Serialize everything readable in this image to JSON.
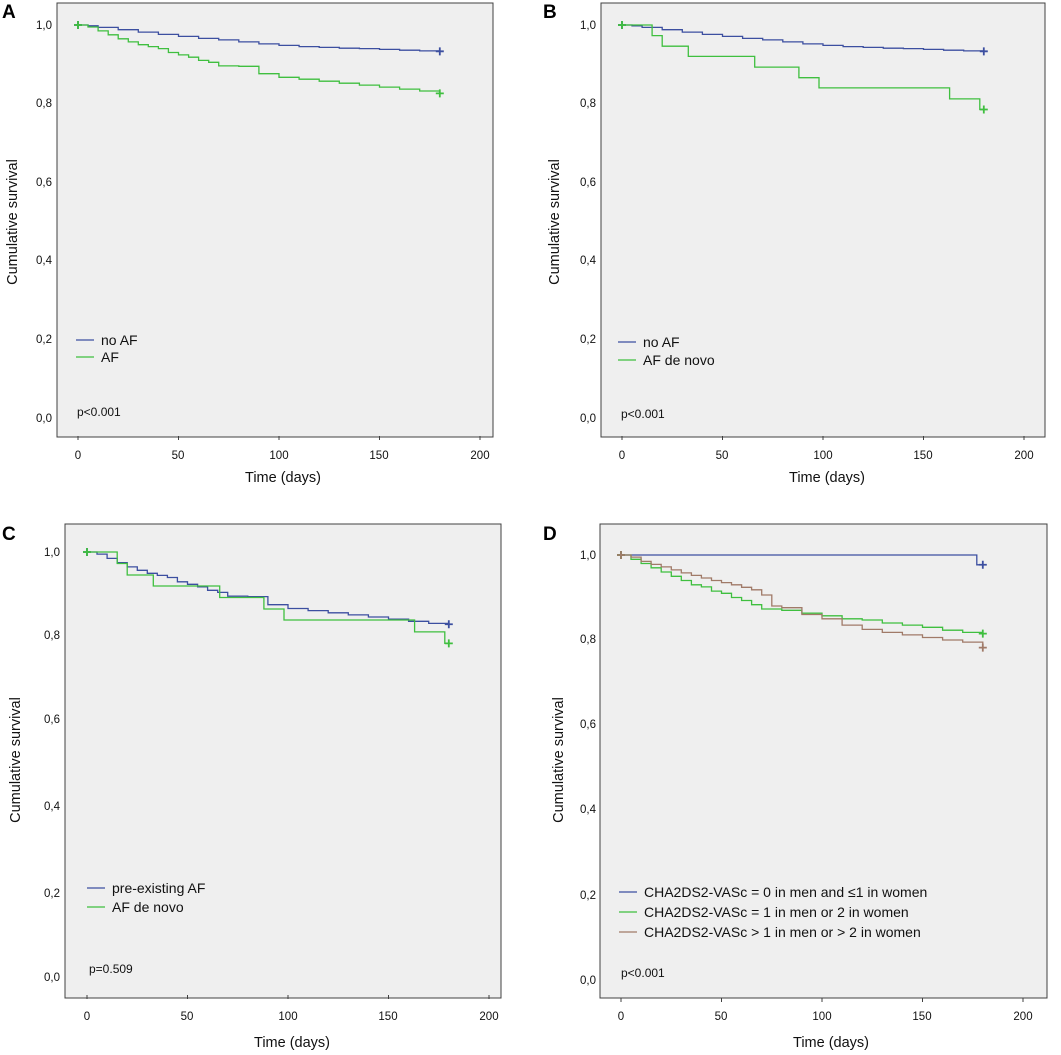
{
  "colors": {
    "blue": "#3c4fa0",
    "green": "#3fbf3f",
    "brown": "#a07a68",
    "panel_bg": "#efefef",
    "frame": "#404040"
  },
  "chart_data": [
    {
      "panel": "A",
      "type": "line",
      "subtype": "kaplan-meier",
      "xlabel": "Time (days)",
      "ylabel": "Cumulative survival",
      "xlim": [
        0,
        200
      ],
      "ylim": [
        0.0,
        1.0
      ],
      "xticks": [
        "0",
        "50",
        "100",
        "150",
        "200"
      ],
      "yticks": [
        "0,0",
        "0,2",
        "0,4",
        "0,6",
        "0,8",
        "1,0"
      ],
      "legend_position": "bottom-left",
      "pvalue": "p<0.001",
      "series": [
        {
          "name": "no AF",
          "color": "#3c4fa0",
          "x": [
            0,
            5,
            10,
            20,
            30,
            40,
            50,
            60,
            70,
            80,
            90,
            100,
            110,
            120,
            130,
            140,
            150,
            160,
            170,
            180
          ],
          "y": [
            1.0,
            0.998,
            0.994,
            0.988,
            0.982,
            0.976,
            0.971,
            0.966,
            0.962,
            0.957,
            0.952,
            0.948,
            0.945,
            0.943,
            0.941,
            0.94,
            0.938,
            0.936,
            0.934,
            0.933
          ]
        },
        {
          "name": "AF",
          "color": "#3fbf3f",
          "x": [
            0,
            5,
            10,
            15,
            20,
            25,
            30,
            35,
            40,
            45,
            50,
            55,
            60,
            65,
            70,
            80,
            90,
            100,
            110,
            120,
            130,
            140,
            150,
            160,
            170,
            180
          ],
          "y": [
            1.0,
            0.995,
            0.985,
            0.975,
            0.965,
            0.957,
            0.95,
            0.945,
            0.94,
            0.93,
            0.924,
            0.918,
            0.91,
            0.905,
            0.896,
            0.895,
            0.876,
            0.867,
            0.862,
            0.857,
            0.852,
            0.847,
            0.842,
            0.837,
            0.832,
            0.826
          ]
        }
      ]
    },
    {
      "panel": "B",
      "type": "line",
      "subtype": "kaplan-meier",
      "xlabel": "Time (days)",
      "ylabel": "Cumulative survival",
      "xlim": [
        0,
        200
      ],
      "ylim": [
        0.0,
        1.0
      ],
      "xticks": [
        "0",
        "50",
        "100",
        "150",
        "200"
      ],
      "yticks": [
        "0,0",
        "0,2",
        "0,4",
        "0,6",
        "0,8",
        "1,0"
      ],
      "legend_position": "bottom-left",
      "pvalue": "p<0.001",
      "series": [
        {
          "name": "no AF",
          "color": "#3c4fa0",
          "x": [
            0,
            5,
            10,
            20,
            30,
            40,
            50,
            60,
            70,
            80,
            90,
            100,
            110,
            120,
            130,
            140,
            150,
            160,
            170,
            180
          ],
          "y": [
            1.0,
            0.998,
            0.994,
            0.988,
            0.982,
            0.976,
            0.971,
            0.966,
            0.962,
            0.957,
            0.952,
            0.948,
            0.945,
            0.943,
            0.941,
            0.94,
            0.938,
            0.936,
            0.934,
            0.933
          ]
        },
        {
          "name": "AF de novo",
          "color": "#3fbf3f",
          "x": [
            0,
            15,
            20,
            33,
            66,
            88,
            98,
            163,
            178,
            180
          ],
          "y": [
            1.0,
            0.973,
            0.946,
            0.92,
            0.893,
            0.866,
            0.84,
            0.812,
            0.785,
            0.785
          ]
        }
      ]
    },
    {
      "panel": "C",
      "type": "line",
      "subtype": "kaplan-meier",
      "xlabel": "Time (days)",
      "ylabel": "Cumulative survival",
      "xlim": [
        0,
        200
      ],
      "ylim": [
        0.0,
        1.0
      ],
      "xticks": [
        "0",
        "50",
        "100",
        "150",
        "200"
      ],
      "yticks": [
        "0,0",
        "0,2",
        "0,4",
        "0,6",
        "0,8",
        "1,0"
      ],
      "legend_position": "bottom-left",
      "pvalue": "p=0.509",
      "series": [
        {
          "name": "pre-existing AF",
          "color": "#3c4fa0",
          "x": [
            0,
            5,
            10,
            15,
            20,
            25,
            30,
            35,
            40,
            45,
            50,
            55,
            60,
            65,
            70,
            80,
            90,
            100,
            110,
            120,
            130,
            140,
            150,
            160,
            170,
            180
          ],
          "y": [
            1.0,
            0.995,
            0.985,
            0.975,
            0.965,
            0.957,
            0.95,
            0.945,
            0.94,
            0.93,
            0.924,
            0.918,
            0.91,
            0.905,
            0.896,
            0.895,
            0.876,
            0.867,
            0.862,
            0.857,
            0.852,
            0.847,
            0.842,
            0.837,
            0.832,
            0.83
          ]
        },
        {
          "name": "AF de novo",
          "color": "#3fbf3f",
          "x": [
            0,
            15,
            20,
            33,
            66,
            88,
            98,
            163,
            178,
            180
          ],
          "y": [
            1.0,
            0.973,
            0.946,
            0.92,
            0.893,
            0.866,
            0.84,
            0.812,
            0.785,
            0.785
          ]
        }
      ]
    },
    {
      "panel": "D",
      "type": "line",
      "subtype": "kaplan-meier",
      "xlabel": "Time (days)",
      "ylabel": "Cumulative survival",
      "xlim": [
        0,
        200
      ],
      "ylim": [
        0.0,
        1.0
      ],
      "xticks": [
        "0",
        "50",
        "100",
        "150",
        "200"
      ],
      "yticks": [
        "0,0",
        "0,2",
        "0,4",
        "0,6",
        "0,8",
        "1,0"
      ],
      "legend_position": "bottom-left",
      "pvalue": "p<0.001",
      "series": [
        {
          "name": "CHA2DS2-VASc = 0 in men and ≤1 in women",
          "color": "#3c4fa0",
          "x": [
            0,
            100,
            175,
            177,
            180
          ],
          "y": [
            1.0,
            1.0,
            1.0,
            0.977,
            0.977
          ]
        },
        {
          "name": "CHA2DS2-VASc = 1 in men or 2 in women",
          "color": "#3fbf3f",
          "x": [
            0,
            5,
            10,
            15,
            20,
            25,
            30,
            35,
            40,
            45,
            50,
            55,
            60,
            65,
            70,
            80,
            90,
            100,
            110,
            120,
            130,
            140,
            150,
            160,
            170,
            180
          ],
          "y": [
            1.0,
            0.99,
            0.98,
            0.97,
            0.96,
            0.95,
            0.94,
            0.93,
            0.925,
            0.915,
            0.91,
            0.9,
            0.893,
            0.883,
            0.873,
            0.87,
            0.863,
            0.857,
            0.85,
            0.847,
            0.84,
            0.835,
            0.83,
            0.823,
            0.818,
            0.815
          ]
        },
        {
          "name": "CHA2DS2-VASc > 1 in men or > 2 in women",
          "color": "#a07a68",
          "x": [
            0,
            5,
            10,
            15,
            20,
            25,
            30,
            35,
            40,
            45,
            50,
            55,
            60,
            65,
            70,
            75,
            80,
            90,
            100,
            110,
            120,
            130,
            140,
            150,
            160,
            170,
            180
          ],
          "y": [
            1.0,
            0.995,
            0.985,
            0.978,
            0.972,
            0.965,
            0.958,
            0.952,
            0.946,
            0.94,
            0.935,
            0.93,
            0.924,
            0.918,
            0.906,
            0.88,
            0.876,
            0.86,
            0.85,
            0.835,
            0.825,
            0.818,
            0.812,
            0.806,
            0.8,
            0.795,
            0.782
          ]
        }
      ]
    }
  ]
}
